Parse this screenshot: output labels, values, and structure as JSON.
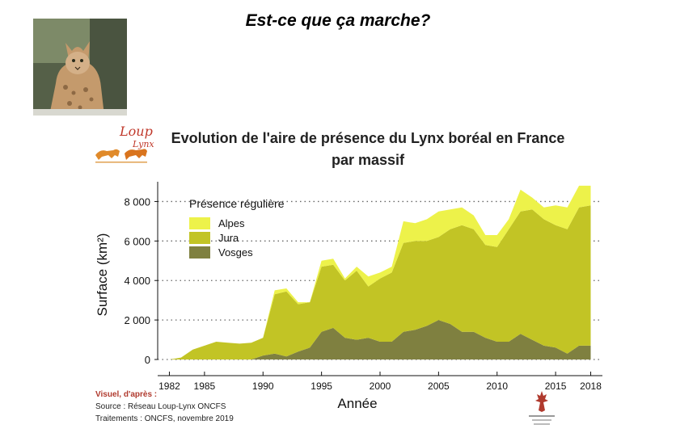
{
  "slide_title": "Est-ce que ça marche?",
  "photo_icon": "lynx-photo",
  "logo": {
    "line1": "Loup",
    "line2": "Lynx"
  },
  "chart_data": {
    "type": "area",
    "title": "Evolution de l'aire de présence du Lynx boréal en France",
    "subtitle": "par massif",
    "xlabel": "Année",
    "ylabel": "Surface (km²)",
    "legend_title": "Présence régulière",
    "legend_position": "top-left",
    "stacked": true,
    "grid": "horizontal-dotted",
    "xlim": [
      1981,
      2019
    ],
    "ylim": [
      0,
      9000
    ],
    "x_ticks": [
      1982,
      1985,
      1990,
      1995,
      2000,
      2005,
      2010,
      2015,
      2018
    ],
    "y_ticks": [
      0,
      2000,
      4000,
      6000,
      8000
    ],
    "y_tick_labels": [
      "0",
      "2 000",
      "4 000",
      "6 000",
      "8 000"
    ],
    "x": [
      1982,
      1983,
      1984,
      1985,
      1986,
      1987,
      1988,
      1989,
      1990,
      1991,
      1992,
      1993,
      1994,
      1995,
      1996,
      1997,
      1998,
      1999,
      2000,
      2001,
      2002,
      2003,
      2004,
      2005,
      2006,
      2007,
      2008,
      2009,
      2010,
      2011,
      2012,
      2013,
      2014,
      2015,
      2016,
      2017,
      2018
    ],
    "series": [
      {
        "name": "Vosges",
        "color": "#7f8040",
        "values": [
          0,
          0,
          0,
          0,
          0,
          0,
          0,
          0,
          200,
          300,
          150,
          400,
          600,
          1400,
          1600,
          1100,
          1000,
          1100,
          900,
          900,
          1400,
          1500,
          1700,
          2000,
          1800,
          1400,
          1400,
          1100,
          900,
          900,
          1300,
          1000,
          700,
          600,
          300,
          700,
          700
        ]
      },
      {
        "name": "Jura",
        "color": "#c2c425",
        "values": [
          0,
          100,
          500,
          700,
          900,
          850,
          800,
          850,
          900,
          3000,
          3300,
          2400,
          2300,
          3300,
          3200,
          2900,
          3500,
          2600,
          3200,
          3500,
          4500,
          4500,
          4300,
          4200,
          4800,
          5400,
          5200,
          4700,
          4800,
          5700,
          6200,
          6600,
          6400,
          6200,
          6300,
          7000,
          7100
        ]
      },
      {
        "name": "Alpes",
        "color": "#edf24a",
        "values": [
          0,
          0,
          0,
          0,
          0,
          0,
          0,
          0,
          0,
          200,
          150,
          100,
          0,
          300,
          300,
          100,
          200,
          500,
          300,
          300,
          1100,
          900,
          1100,
          1300,
          1000,
          900,
          700,
          500,
          600,
          500,
          1100,
          600,
          600,
          1000,
          1100,
          1100,
          1000
        ]
      }
    ]
  },
  "credits": {
    "heading": "Visuel, d'après :",
    "source": "Source : Réseau Loup-Lynx ONCFS",
    "treatment": "Traitements : ONCFS, novembre 2019"
  },
  "oncfs_logo": {
    "icon": "deer-icon"
  }
}
